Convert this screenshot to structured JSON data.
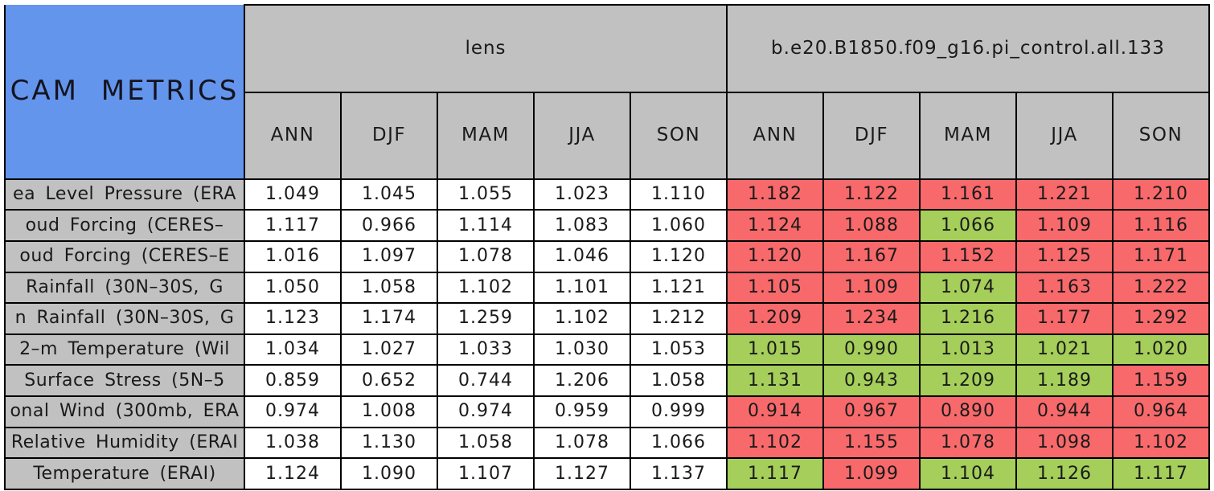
{
  "title": "CAM METRICS",
  "header": {
    "group_left": "lens",
    "group_right": "b.e20.B1850.f09_g16.pi_control.all.133",
    "seasons": [
      "ANN",
      "DJF",
      "MAM",
      "JJA",
      "SON"
    ]
  },
  "colors": {
    "worse_red": "#f8696b",
    "better_green": "#a5ce5a",
    "header_gray": "#c1c1c1",
    "title_blue": "#6495ed",
    "cell_border": "#000000",
    "text": "#1a1a1a",
    "page_background": "#ffffff"
  },
  "chart_data": {
    "type": "table",
    "title": "CAM METRICS",
    "column_groups": [
      {
        "label": "lens",
        "columns": [
          "ANN",
          "DJF",
          "MAM",
          "JJA",
          "SON"
        ]
      },
      {
        "label": "b.e20.B1850.f09_g16.pi_control.all.133",
        "columns": [
          "ANN",
          "DJF",
          "MAM",
          "JJA",
          "SON"
        ]
      }
    ],
    "rows": [
      {
        "label": "ea Level Pressure (ERA",
        "lens_values": [
          "1.049",
          "1.045",
          "1.055",
          "1.023",
          "1.110"
        ],
        "control_values": [
          "1.182",
          "1.122",
          "1.161",
          "1.221",
          "1.210"
        ],
        "control_cell_colors": [
          "red",
          "red",
          "red",
          "red",
          "red"
        ]
      },
      {
        "label": "oud Forcing (CERES–",
        "lens_values": [
          "1.117",
          "0.966",
          "1.114",
          "1.083",
          "1.060"
        ],
        "control_values": [
          "1.124",
          "1.088",
          "1.066",
          "1.109",
          "1.116"
        ],
        "control_cell_colors": [
          "red",
          "red",
          "green",
          "red",
          "red"
        ]
      },
      {
        "label": "oud Forcing (CERES–E",
        "lens_values": [
          "1.016",
          "1.097",
          "1.078",
          "1.046",
          "1.120"
        ],
        "control_values": [
          "1.120",
          "1.167",
          "1.152",
          "1.125",
          "1.171"
        ],
        "control_cell_colors": [
          "red",
          "red",
          "red",
          "red",
          "red"
        ]
      },
      {
        "label": "Rainfall (30N–30S, G",
        "lens_values": [
          "1.050",
          "1.058",
          "1.102",
          "1.101",
          "1.121"
        ],
        "control_values": [
          "1.105",
          "1.109",
          "1.074",
          "1.163",
          "1.222"
        ],
        "control_cell_colors": [
          "red",
          "red",
          "green",
          "red",
          "red"
        ]
      },
      {
        "label": "n Rainfall (30N–30S, G",
        "lens_values": [
          "1.123",
          "1.174",
          "1.259",
          "1.102",
          "1.212"
        ],
        "control_values": [
          "1.209",
          "1.234",
          "1.216",
          "1.177",
          "1.292"
        ],
        "control_cell_colors": [
          "red",
          "red",
          "green",
          "red",
          "red"
        ]
      },
      {
        "label": "2–m Temperature (Wil",
        "lens_values": [
          "1.034",
          "1.027",
          "1.033",
          "1.030",
          "1.053"
        ],
        "control_values": [
          "1.015",
          "0.990",
          "1.013",
          "1.021",
          "1.020"
        ],
        "control_cell_colors": [
          "green",
          "green",
          "green",
          "green",
          "green"
        ]
      },
      {
        "label": "Surface Stress (5N–5",
        "lens_values": [
          "0.859",
          "0.652",
          "0.744",
          "1.206",
          "1.058"
        ],
        "control_values": [
          "1.131",
          "0.943",
          "1.209",
          "1.189",
          "1.159"
        ],
        "control_cell_colors": [
          "green",
          "green",
          "green",
          "green",
          "red"
        ]
      },
      {
        "label": "onal Wind (300mb, ERA",
        "lens_values": [
          "0.974",
          "1.008",
          "0.974",
          "0.959",
          "0.999"
        ],
        "control_values": [
          "0.914",
          "0.967",
          "0.890",
          "0.944",
          "0.964"
        ],
        "control_cell_colors": [
          "red",
          "red",
          "red",
          "red",
          "red"
        ]
      },
      {
        "label": "Relative Humidity (ERAI",
        "lens_values": [
          "1.038",
          "1.130",
          "1.058",
          "1.078",
          "1.066"
        ],
        "control_values": [
          "1.102",
          "1.155",
          "1.078",
          "1.098",
          "1.102"
        ],
        "control_cell_colors": [
          "red",
          "red",
          "red",
          "red",
          "red"
        ]
      },
      {
        "label": "Temperature (ERAI)",
        "lens_values": [
          "1.124",
          "1.090",
          "1.107",
          "1.127",
          "1.137"
        ],
        "control_values": [
          "1.117",
          "1.099",
          "1.104",
          "1.126",
          "1.117"
        ],
        "control_cell_colors": [
          "green",
          "red",
          "green",
          "green",
          "green"
        ]
      }
    ]
  }
}
